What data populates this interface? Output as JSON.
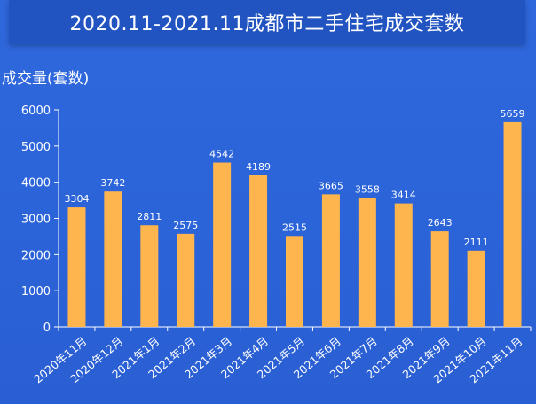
{
  "header": {
    "title": "2020.11-2021.11成都市二手住宅成交套数"
  },
  "chart_data": {
    "type": "bar",
    "title": "2020.11-2021.11成都市二手住宅成交套数",
    "ylabel": "成交量(套数)",
    "xlabel": "",
    "ylim": [
      0,
      6000
    ],
    "yticks": [
      0,
      1000,
      2000,
      3000,
      4000,
      5000,
      6000
    ],
    "grid": false,
    "bar_color": "#ffb54d",
    "categories": [
      "2020年11月",
      "2020年12月",
      "2021年1月",
      "2021年2月",
      "2021年3月",
      "2021年4月",
      "2021年5月",
      "2021年6月",
      "2021年7月",
      "2021年8月",
      "2021年9月",
      "2021年10月",
      "2021年11月"
    ],
    "values": [
      3304,
      3742,
      2811,
      2575,
      4542,
      4189,
      2515,
      3665,
      3558,
      3414,
      2643,
      2111,
      5659
    ]
  }
}
